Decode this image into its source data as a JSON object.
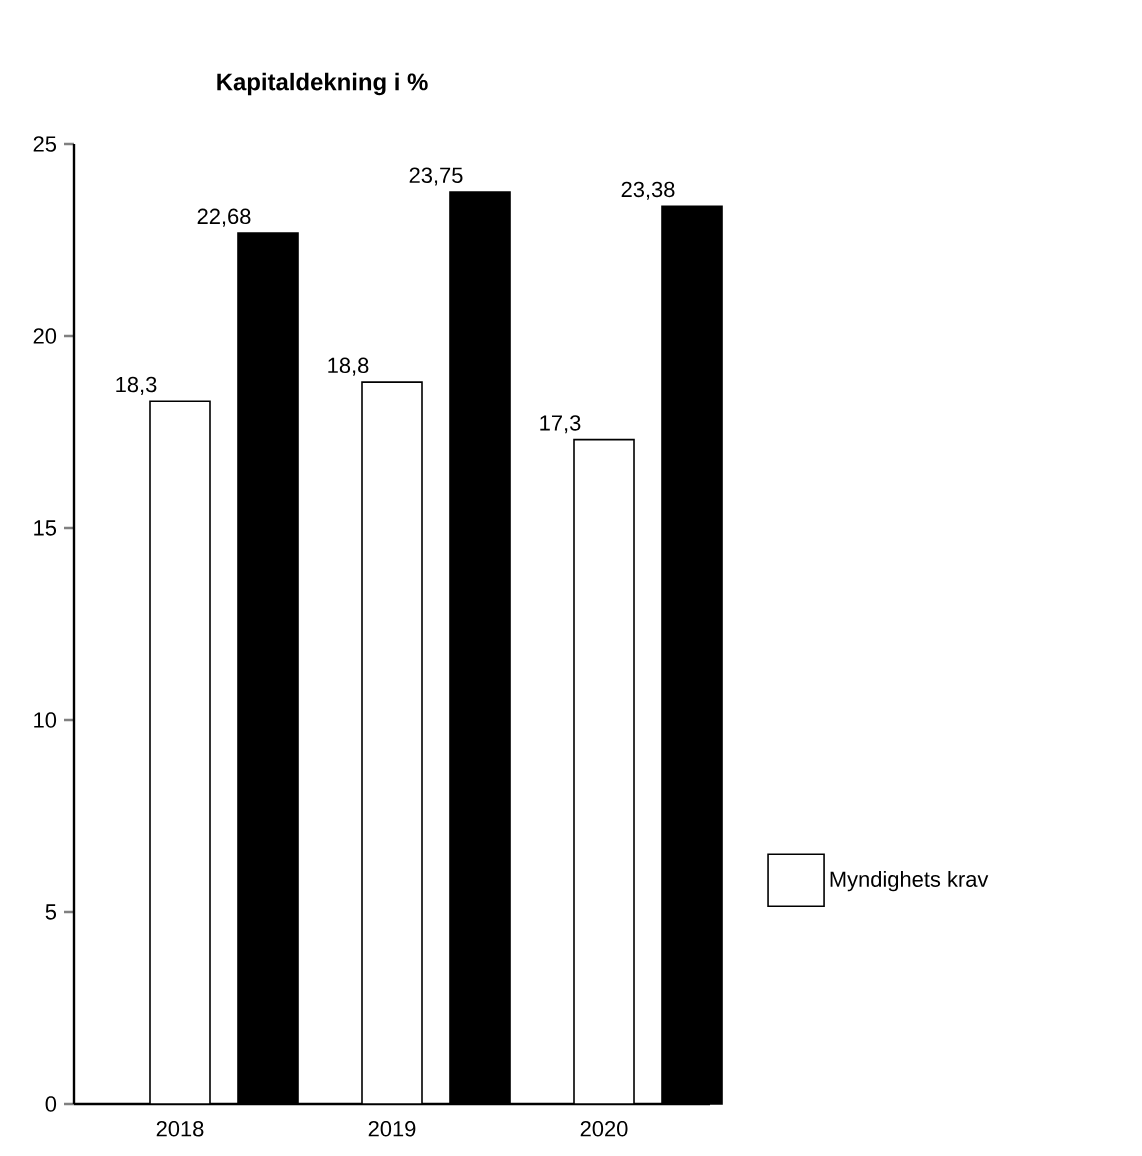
{
  "chart_data": {
    "type": "bar",
    "title": "Kapitaldekning i %",
    "categories": [
      "2018",
      "2019",
      "2020"
    ],
    "series": [
      {
        "name": "Myndighets krav",
        "color": "#ffffff",
        "values": [
          18.3,
          18.8,
          17.3
        ],
        "value_labels": [
          "18,3",
          "18,8",
          "17,3"
        ]
      },
      {
        "color": "#000000",
        "values": [
          22.68,
          23.75,
          23.38
        ],
        "value_labels": [
          "22,68",
          "23,75",
          "23,38"
        ]
      }
    ],
    "ylim": [
      0,
      25
    ],
    "yticks": [
      0,
      5,
      10,
      15,
      20,
      25
    ],
    "grid": false,
    "legend": "right"
  }
}
